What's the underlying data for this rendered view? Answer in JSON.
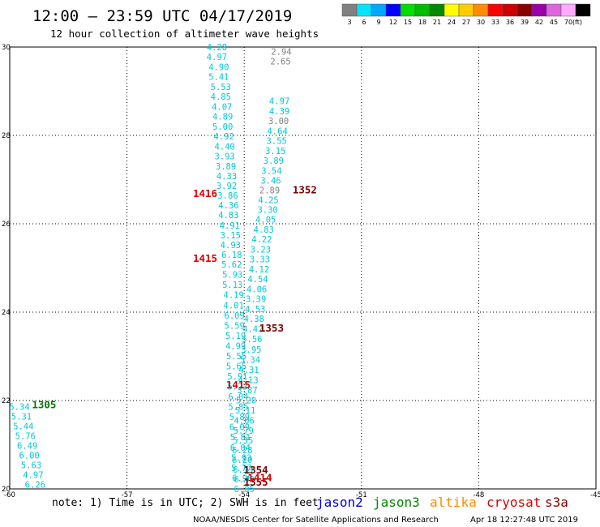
{
  "header": {
    "title": "12:00 – 23:59 UTC 04/17/2019",
    "subtitle": "12 hour collection of altimeter wave heights"
  },
  "legend": {
    "unit": "(ft)",
    "bins": [
      {
        "label": "3",
        "color": "#808080"
      },
      {
        "label": "6",
        "color": "#00e5ff"
      },
      {
        "label": "9",
        "color": "#00a8ff"
      },
      {
        "label": "12",
        "color": "#0000ff"
      },
      {
        "label": "15",
        "color": "#00dd00"
      },
      {
        "label": "18",
        "color": "#00bb00"
      },
      {
        "label": "21",
        "color": "#008800"
      },
      {
        "label": "24",
        "color": "#ffff00"
      },
      {
        "label": "27",
        "color": "#ffcc00"
      },
      {
        "label": "30",
        "color": "#ff8c00"
      },
      {
        "label": "33",
        "color": "#ff0000"
      },
      {
        "label": "36",
        "color": "#cc0000"
      },
      {
        "label": "39",
        "color": "#880000"
      },
      {
        "label": "42",
        "color": "#9900aa"
      },
      {
        "label": "45",
        "color": "#dd66dd"
      },
      {
        "label": "70",
        "color": "#ffaaff"
      },
      {
        "label": "",
        "color": "#000000"
      }
    ]
  },
  "footer": {
    "note": "note: 1) Time is in UTC; 2) SWH is in feet",
    "satellites": [
      {
        "name": "jason2",
        "color": "#0000dd"
      },
      {
        "name": "jason3",
        "color": "#008800"
      },
      {
        "name": "altika",
        "color": "#ff8c00"
      },
      {
        "name": "cryosat",
        "color": "#dd0000"
      },
      {
        "name": "s3a",
        "color": "#880000"
      }
    ],
    "credit": "NOAA/NESDIS Center for Satellite Applications and Research",
    "timestamp": "Apr 18 12:27:48 UTC 2019"
  },
  "chart_data": {
    "type": "scatter",
    "title": "12:00 – 23:59 UTC 04/17/2019",
    "subtitle": "12 hour collection of altimeter wave heights",
    "xlim": [
      -60,
      -45
    ],
    "ylim": [
      20,
      30
    ],
    "x_ticks": [
      "-60",
      "-57",
      "-54",
      "-51",
      "-48",
      "-45"
    ],
    "y_ticks": [
      "20",
      "22",
      "24",
      "26",
      "28",
      "30"
    ],
    "grid": true,
    "colors": {
      "cyan": "#00c8d8",
      "gray": "#808080",
      "red": "#e00000",
      "darkred": "#7a0000",
      "green": "#007700"
    },
    "series": [
      {
        "name": "",
        "color": "cyan",
        "points": [
          {
            "x": -54.7,
            "y": 30.0,
            "v": "4.28"
          },
          {
            "x": -54.7,
            "y": 29.78,
            "v": "4.97"
          },
          {
            "x": -54.65,
            "y": 29.55,
            "v": "4.90"
          },
          {
            "x": -54.65,
            "y": 29.33,
            "v": "5.41"
          },
          {
            "x": -54.6,
            "y": 29.1,
            "v": "5.53"
          },
          {
            "x": -54.6,
            "y": 28.88,
            "v": "4.85"
          },
          {
            "x": -54.57,
            "y": 28.65,
            "v": "4.07"
          },
          {
            "x": -54.55,
            "y": 28.43,
            "v": "4.89"
          },
          {
            "x": -54.55,
            "y": 28.2,
            "v": "5.00"
          },
          {
            "x": -54.52,
            "y": 27.98,
            "v": "4.92"
          },
          {
            "x": -54.5,
            "y": 27.75,
            "v": "4.40"
          },
          {
            "x": -54.5,
            "y": 27.53,
            "v": "3.93"
          },
          {
            "x": -54.47,
            "y": 27.3,
            "v": "3.89"
          },
          {
            "x": -54.45,
            "y": 27.08,
            "v": "4.33"
          },
          {
            "x": -54.45,
            "y": 26.86,
            "v": "3.92"
          },
          {
            "x": -54.42,
            "y": 26.64,
            "v": "3.86"
          },
          {
            "x": -54.4,
            "y": 26.42,
            "v": "4.36"
          },
          {
            "x": -54.4,
            "y": 26.2,
            "v": "4.83"
          },
          {
            "x": -54.37,
            "y": 25.96,
            "v": "4.91"
          },
          {
            "x": -54.35,
            "y": 25.74,
            "v": "3.15"
          },
          {
            "x": -54.35,
            "y": 25.52,
            "v": "4.93"
          },
          {
            "x": -54.32,
            "y": 25.3,
            "v": "6.18"
          },
          {
            "x": -54.32,
            "y": 25.08,
            "v": "5.62"
          },
          {
            "x": -54.3,
            "y": 24.85,
            "v": "5.93"
          },
          {
            "x": -54.3,
            "y": 24.62,
            "v": "5.13"
          },
          {
            "x": -54.27,
            "y": 24.39,
            "v": "4.19"
          },
          {
            "x": -54.27,
            "y": 24.16,
            "v": "4.01"
          },
          {
            "x": -54.25,
            "y": 23.93,
            "v": "6.09"
          },
          {
            "x": -54.25,
            "y": 23.7,
            "v": "5.59"
          },
          {
            "x": -54.22,
            "y": 23.47,
            "v": "5.19"
          },
          {
            "x": -54.22,
            "y": 23.24,
            "v": "4.99"
          },
          {
            "x": -54.2,
            "y": 23.01,
            "v": "5.55"
          },
          {
            "x": -54.2,
            "y": 22.78,
            "v": "5.65"
          },
          {
            "x": -54.17,
            "y": 22.55,
            "v": "5.91"
          },
          {
            "x": -54.17,
            "y": 22.32,
            "v": "5.23"
          },
          {
            "x": -54.15,
            "y": 22.09,
            "v": "6.04"
          },
          {
            "x": -54.15,
            "y": 21.86,
            "v": "5.85"
          },
          {
            "x": -54.12,
            "y": 21.63,
            "v": "5.89"
          },
          {
            "x": -54.12,
            "y": 21.4,
            "v": "6.09"
          },
          {
            "x": -54.1,
            "y": 21.17,
            "v": "5.81"
          },
          {
            "x": -54.1,
            "y": 20.94,
            "v": "6.04"
          },
          {
            "x": -54.07,
            "y": 20.71,
            "v": "5.93"
          },
          {
            "x": -54.07,
            "y": 20.48,
            "v": "5.77"
          },
          {
            "x": -54.05,
            "y": 20.25,
            "v": "6.96"
          },
          {
            "x": -53.1,
            "y": 28.78,
            "v": "4.97"
          },
          {
            "x": -53.1,
            "y": 28.55,
            "v": "4.39"
          },
          {
            "x": -53.15,
            "y": 28.1,
            "v": "4.64"
          },
          {
            "x": -53.17,
            "y": 27.88,
            "v": "3.55"
          },
          {
            "x": -53.2,
            "y": 27.65,
            "v": "3.15"
          },
          {
            "x": -53.25,
            "y": 27.43,
            "v": "3.89"
          },
          {
            "x": -53.3,
            "y": 27.2,
            "v": "3.54"
          },
          {
            "x": -53.32,
            "y": 26.98,
            "v": "3.46"
          },
          {
            "x": -53.38,
            "y": 26.54,
            "v": "4.25"
          },
          {
            "x": -53.4,
            "y": 26.32,
            "v": "3.30"
          },
          {
            "x": -53.45,
            "y": 26.1,
            "v": "4.05"
          },
          {
            "x": -53.5,
            "y": 25.87,
            "v": "4.83"
          },
          {
            "x": -53.55,
            "y": 25.65,
            "v": "4.22"
          },
          {
            "x": -53.58,
            "y": 25.42,
            "v": "3.23"
          },
          {
            "x": -53.6,
            "y": 25.2,
            "v": "3.33"
          },
          {
            "x": -53.62,
            "y": 24.97,
            "v": "4.12"
          },
          {
            "x": -53.65,
            "y": 24.75,
            "v": "4.54"
          },
          {
            "x": -53.68,
            "y": 24.52,
            "v": "4.06"
          },
          {
            "x": -53.7,
            "y": 24.3,
            "v": "3.39"
          },
          {
            "x": -53.72,
            "y": 24.07,
            "v": "4.53"
          },
          {
            "x": -53.75,
            "y": 23.85,
            "v": "4.38"
          },
          {
            "x": -53.78,
            "y": 23.62,
            "v": "4.42"
          },
          {
            "x": -53.8,
            "y": 23.39,
            "v": "5.56"
          },
          {
            "x": -53.82,
            "y": 23.16,
            "v": "3.95"
          },
          {
            "x": -53.85,
            "y": 22.93,
            "v": "5.34"
          },
          {
            "x": -53.88,
            "y": 22.7,
            "v": "4.31"
          },
          {
            "x": -53.9,
            "y": 22.47,
            "v": "4.13"
          },
          {
            "x": -53.92,
            "y": 22.24,
            "v": "3.87"
          },
          {
            "x": -53.95,
            "y": 22.01,
            "v": "5.20"
          },
          {
            "x": -53.97,
            "y": 21.78,
            "v": "5.11"
          },
          {
            "x": -54.0,
            "y": 21.55,
            "v": "4.06"
          },
          {
            "x": -54.02,
            "y": 21.32,
            "v": "5.79"
          },
          {
            "x": -54.03,
            "y": 21.1,
            "v": "5.35"
          },
          {
            "x": -54.05,
            "y": 20.88,
            "v": "6.28"
          },
          {
            "x": -54.05,
            "y": 20.66,
            "v": "6.20"
          },
          {
            "x": -54.03,
            "y": 20.44,
            "v": "6.13"
          },
          {
            "x": -54.0,
            "y": 20.22,
            "v": "6.42"
          },
          {
            "x": -54.0,
            "y": 20.0,
            "v": "6.05"
          },
          {
            "x": -59.75,
            "y": 21.86,
            "v": "5.34"
          },
          {
            "x": -59.7,
            "y": 21.64,
            "v": "5.31"
          },
          {
            "x": -59.65,
            "y": 21.42,
            "v": "5.44"
          },
          {
            "x": -59.6,
            "y": 21.2,
            "v": "5.76"
          },
          {
            "x": -59.55,
            "y": 20.98,
            "v": "6.49"
          },
          {
            "x": -59.5,
            "y": 20.76,
            "v": "6.00"
          },
          {
            "x": -59.45,
            "y": 20.54,
            "v": "5.63"
          },
          {
            "x": -59.4,
            "y": 20.32,
            "v": "4.97"
          },
          {
            "x": -59.35,
            "y": 20.1,
            "v": "6.26"
          }
        ]
      },
      {
        "name": "",
        "color": "gray",
        "points": [
          {
            "x": -53.05,
            "y": 29.9,
            "v": "2.94"
          },
          {
            "x": -53.07,
            "y": 29.68,
            "v": "2.65"
          },
          {
            "x": -53.12,
            "y": 28.33,
            "v": "3.00"
          },
          {
            "x": -53.35,
            "y": 26.76,
            "v": "2.89"
          }
        ]
      }
    ],
    "time_labels": [
      {
        "x": -52.45,
        "y": 26.76,
        "text": "1352",
        "color": "darkred"
      },
      {
        "x": -53.3,
        "y": 23.63,
        "text": "1353",
        "color": "darkred"
      },
      {
        "x": -53.7,
        "y": 20.42,
        "text": "1354",
        "color": "darkred"
      },
      {
        "x": -53.7,
        "y": 20.15,
        "text": "1355",
        "color": "darkred"
      },
      {
        "x": -55.0,
        "y": 26.68,
        "text": "1416",
        "color": "red"
      },
      {
        "x": -55.0,
        "y": 25.21,
        "text": "1415",
        "color": "red"
      },
      {
        "x": -54.15,
        "y": 22.35,
        "text": "1415",
        "color": "red"
      },
      {
        "x": -53.6,
        "y": 20.25,
        "text": "1414",
        "color": "red"
      },
      {
        "x": -59.12,
        "y": 21.9,
        "text": "1305",
        "color": "green"
      }
    ]
  }
}
